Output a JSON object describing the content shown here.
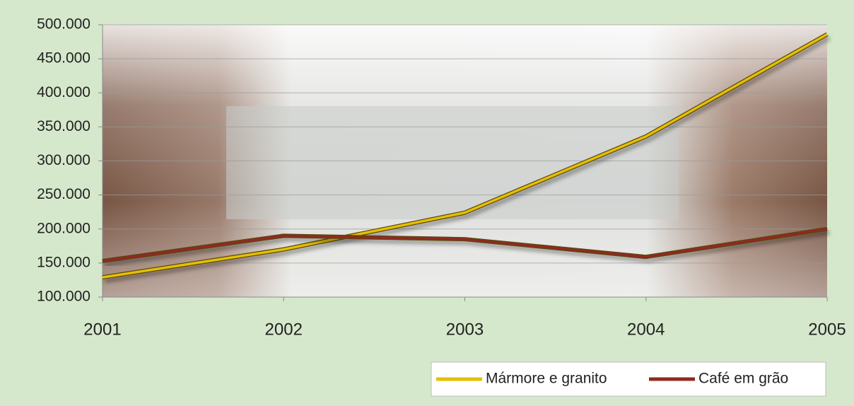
{
  "chart_data": {
    "type": "line",
    "categories": [
      "2001",
      "2002",
      "2003",
      "2004",
      "2005"
    ],
    "series": [
      {
        "name": "Mármore e granito",
        "color": "#e6c000",
        "values": [
          129000,
          170000,
          224000,
          336000,
          486000
        ]
      },
      {
        "name": "Café em grão",
        "color": "#8e2a22",
        "values": [
          153000,
          190000,
          185000,
          159000,
          200000
        ]
      }
    ],
    "ylim": [
      100000,
      500000
    ],
    "yticks": [
      {
        "value": 100000,
        "label": "100.000"
      },
      {
        "value": 150000,
        "label": "150.000"
      },
      {
        "value": 200000,
        "label": "200.000"
      },
      {
        "value": 250000,
        "label": "250.000"
      },
      {
        "value": 300000,
        "label": "300.000"
      },
      {
        "value": 350000,
        "label": "350.000"
      },
      {
        "value": 400000,
        "label": "400.000"
      },
      {
        "value": 450000,
        "label": "450.000"
      },
      {
        "value": 500000,
        "label": "500.000"
      }
    ],
    "grid": true,
    "legend": "bottom-right"
  }
}
